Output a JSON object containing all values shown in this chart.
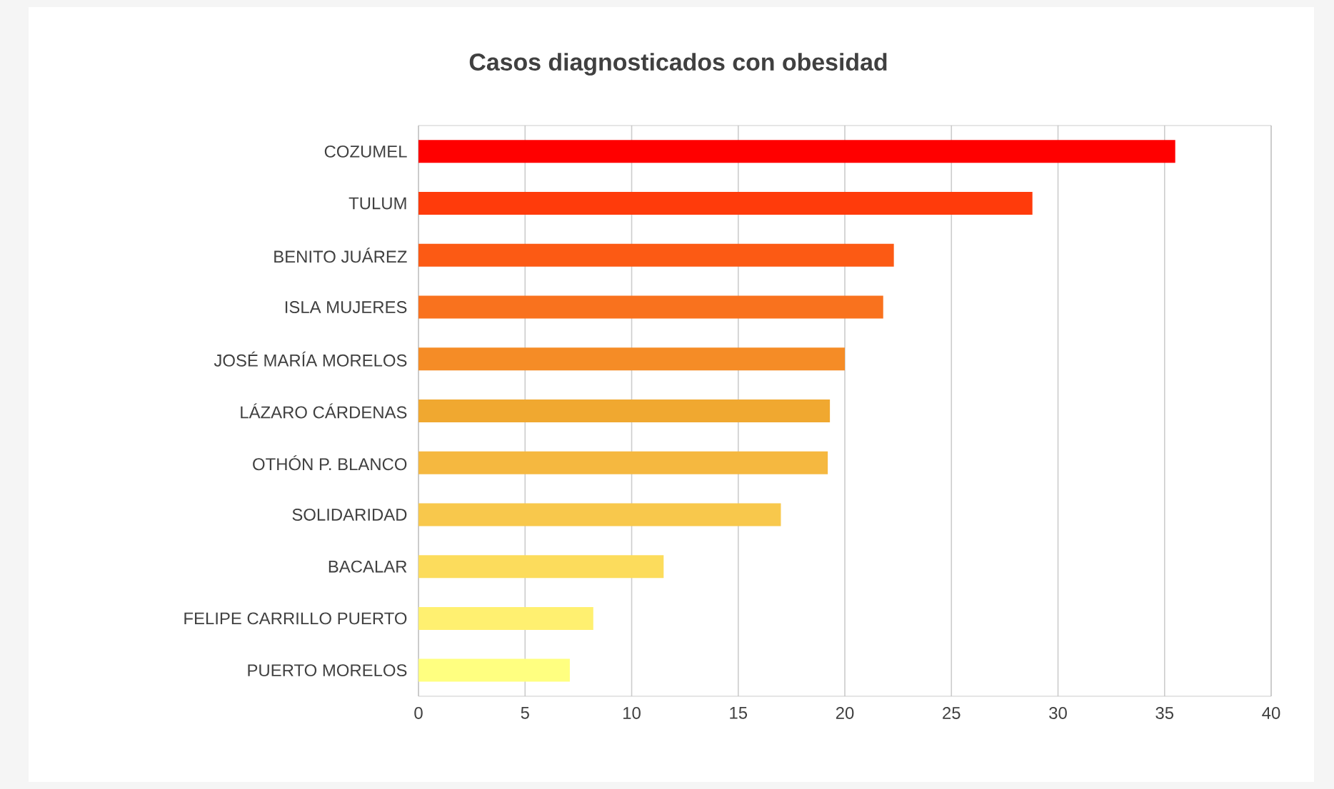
{
  "chart_data": {
    "type": "bar",
    "orientation": "horizontal",
    "title": "Casos diagnosticados con obesidad",
    "categories": [
      "COZUMEL",
      "TULUM",
      "BENITO JUÁREZ",
      "ISLA MUJERES",
      "JOSÉ MARÍA MORELOS",
      "LÁZARO CÁRDENAS",
      "OTHÓN P. BLANCO",
      "SOLIDARIDAD",
      "BACALAR",
      "FELIPE CARRILLO PUERTO",
      "PUERTO MORELOS"
    ],
    "values": [
      35.5,
      28.8,
      22.3,
      21.8,
      20.0,
      19.3,
      19.2,
      17.0,
      11.5,
      8.2,
      7.1
    ],
    "colors": [
      "#ff0000",
      "#ff3b0b",
      "#fc5a14",
      "#f9721e",
      "#f58c26",
      "#f0a830",
      "#f5b840",
      "#f8c84c",
      "#fcdc5c",
      "#fff070",
      "#ffff80"
    ],
    "xlim": [
      0,
      40
    ],
    "xticks": [
      0,
      5,
      10,
      15,
      20,
      25,
      30,
      35,
      40
    ],
    "grid": "x"
  }
}
